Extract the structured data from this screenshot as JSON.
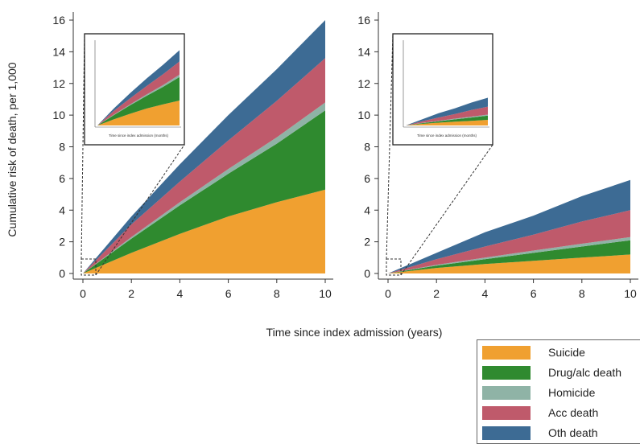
{
  "chart_data": {
    "type": "area",
    "stacked": true,
    "ylabel": "Cumulative risk of death, per 1,000",
    "xlabel": "Time since index admission (years)",
    "xlim": [
      0,
      10
    ],
    "ylim": [
      0,
      16
    ],
    "x_ticks": [
      0,
      2,
      4,
      6,
      8,
      10
    ],
    "y_ticks": [
      0,
      2,
      4,
      6,
      8,
      10,
      12,
      14,
      16
    ],
    "legend_position": "bottom-right",
    "series_colors": [
      "#f0a030",
      "#2f8a2f",
      "#8fb3a6",
      "#bf5a6b",
      "#3d6b94"
    ],
    "legend": [
      "Suicide",
      "Drug/alc death",
      "Homicide",
      "Acc death",
      "Oth death"
    ],
    "x": [
      0,
      2,
      4,
      6,
      8,
      10
    ],
    "panels": [
      {
        "series": [
          {
            "name": "Suicide",
            "values": [
              0,
              1.3,
              2.5,
              3.6,
              4.5,
              5.3
            ]
          },
          {
            "name": "Drug/alc death",
            "values": [
              0,
              0.9,
              1.8,
              2.7,
              3.7,
              5.0
            ]
          },
          {
            "name": "Homicide",
            "values": [
              0,
              0.1,
              0.2,
              0.3,
              0.4,
              0.5
            ]
          },
          {
            "name": "Acc death",
            "values": [
              0,
              0.8,
              1.3,
              1.8,
              2.3,
              2.8
            ]
          },
          {
            "name": "Oth death",
            "values": [
              0,
              0.5,
              1.1,
              1.6,
              2.0,
              2.4
            ]
          }
        ],
        "inset": {
          "xlabel": "Time since index admission (months)"
        }
      },
      {
        "series": [
          {
            "name": "Suicide",
            "values": [
              0,
              0.35,
              0.6,
              0.8,
              1.0,
              1.2
            ]
          },
          {
            "name": "Drug/alc death",
            "values": [
              0,
              0.15,
              0.3,
              0.5,
              0.7,
              0.9
            ]
          },
          {
            "name": "Homicide",
            "values": [
              0,
              0.05,
              0.1,
              0.15,
              0.18,
              0.2
            ]
          },
          {
            "name": "Acc death",
            "values": [
              0,
              0.35,
              0.7,
              1.0,
              1.4,
              1.7
            ]
          },
          {
            "name": "Oth death",
            "values": [
              0,
              0.4,
              0.9,
              1.2,
              1.6,
              1.9
            ]
          }
        ],
        "inset": {
          "xlabel": "Time since index admission (months)"
        }
      }
    ]
  }
}
